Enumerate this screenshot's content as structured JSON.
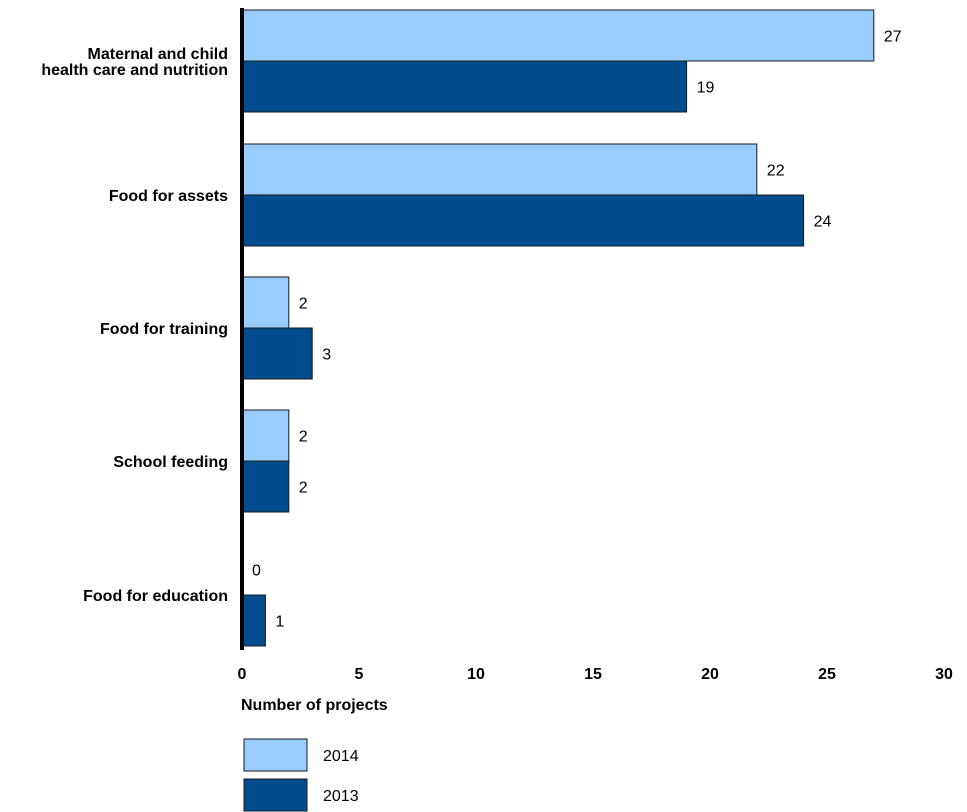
{
  "chart_data": {
    "type": "bar",
    "orientation": "horizontal",
    "categories": [
      [
        "Maternal and child",
        "health care and nutrition"
      ],
      [
        "Food for assets"
      ],
      [
        "Food for training"
      ],
      [
        "School feeding"
      ],
      [
        "Food for education"
      ]
    ],
    "series": [
      {
        "name": "2014",
        "color": "#99ccff",
        "values": [
          27,
          22,
          2,
          2,
          0
        ]
      },
      {
        "name": "2013",
        "color": "#004c8c",
        "values": [
          19,
          24,
          3,
          2,
          1
        ]
      }
    ],
    "xlabel": "Number of projects",
    "ylabel": "",
    "xlim": [
      0,
      30
    ],
    "xticks": [
      0,
      5,
      10,
      15,
      20,
      25,
      30
    ],
    "grid": false,
    "legend_position": "bottom-left"
  }
}
